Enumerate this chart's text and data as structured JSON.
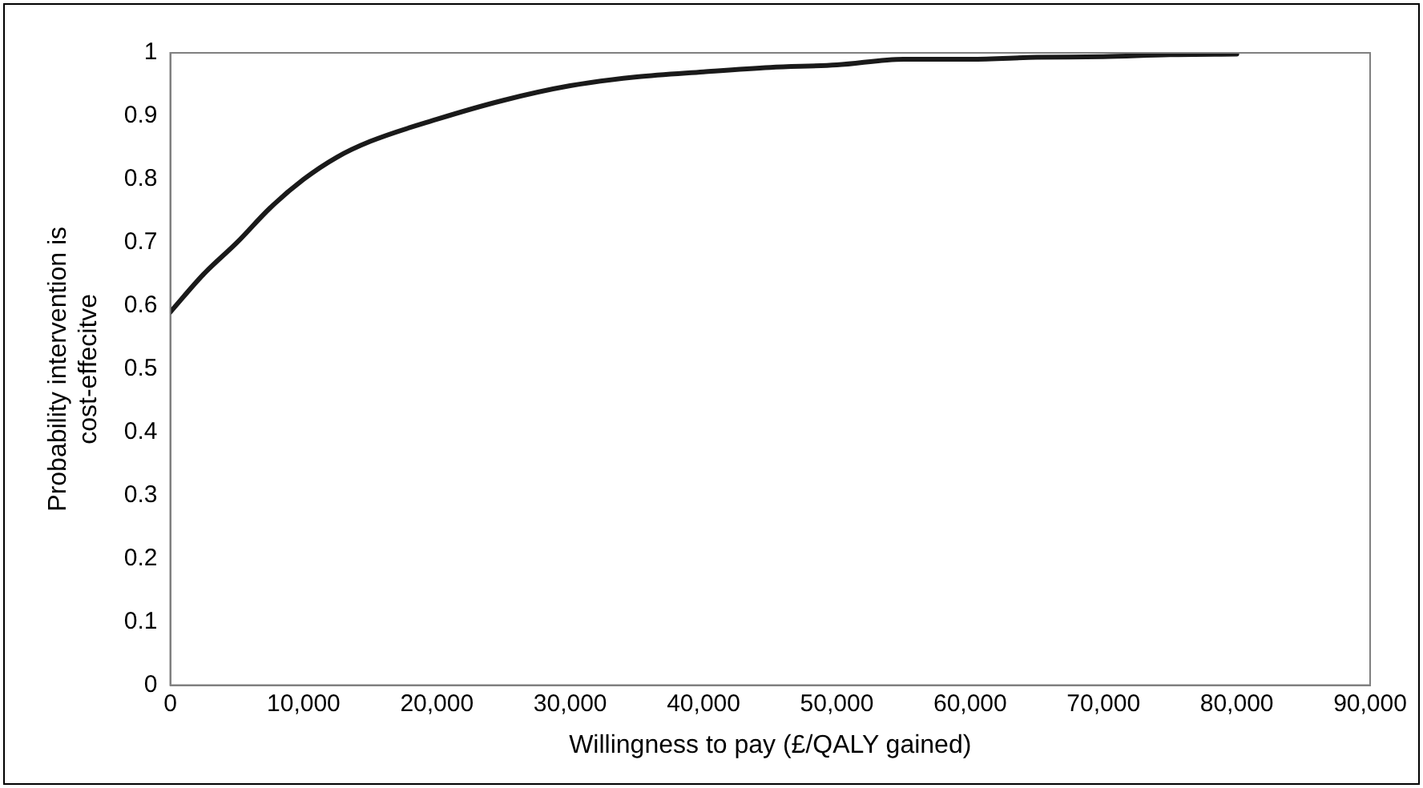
{
  "chart_data": {
    "type": "line",
    "xlabel": "Willingness to pay (£/QALY gained)",
    "ylabel": "Probability intervention is\ncost-effecitve",
    "x": [
      0,
      2500,
      5000,
      7500,
      10000,
      12500,
      15000,
      20000,
      25000,
      30000,
      35000,
      40000,
      45000,
      50000,
      55000,
      60000,
      65000,
      70000,
      75000,
      80000
    ],
    "series": [
      {
        "color": "#1a1a1a",
        "values": [
          0.59,
          0.65,
          0.7,
          0.755,
          0.8,
          0.835,
          0.86,
          0.895,
          0.925,
          0.948,
          0.962,
          0.97,
          0.977,
          0.981,
          0.99,
          0.99,
          0.993,
          0.994,
          0.997,
          0.998
        ]
      }
    ],
    "xlim": [
      0,
      90000
    ],
    "xticks": [
      {
        "value": 0,
        "label": "0"
      },
      {
        "value": 10000,
        "label": "10,000"
      },
      {
        "value": 20000,
        "label": "20,000"
      },
      {
        "value": 30000,
        "label": "30,000"
      },
      {
        "value": 40000,
        "label": "40,000"
      },
      {
        "value": 50000,
        "label": "50,000"
      },
      {
        "value": 60000,
        "label": "60,000"
      },
      {
        "value": 70000,
        "label": "70,000"
      },
      {
        "value": 80000,
        "label": "80,000"
      },
      {
        "value": 90000,
        "label": "90,000"
      }
    ],
    "ylim": [
      0,
      1
    ],
    "yticks": [
      0,
      0.1,
      0.2,
      0.3,
      0.4,
      0.5,
      0.6,
      0.7,
      0.8,
      0.9,
      1
    ],
    "grid": false,
    "legend": false,
    "marker": "none",
    "line_style": "solid"
  }
}
